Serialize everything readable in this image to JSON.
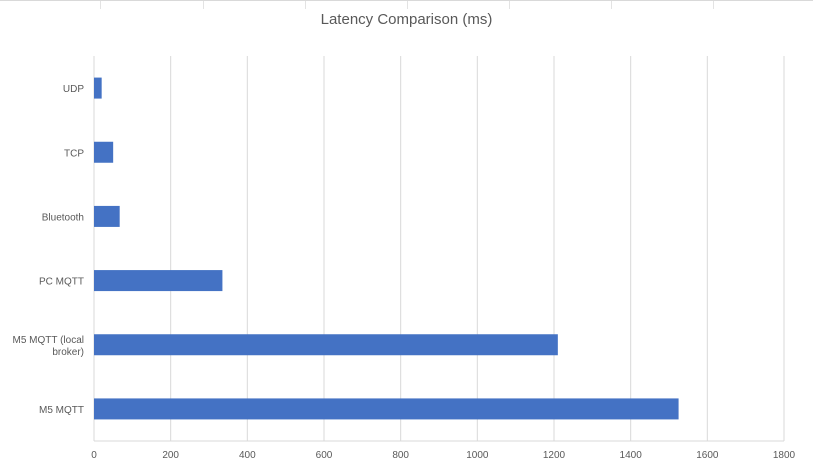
{
  "chart_data": {
    "type": "bar",
    "orientation": "horizontal",
    "title": "Latency Comparison (ms)",
    "categories": [
      "UDP",
      "TCP",
      "Bluetooth",
      "PC MQTT",
      "M5 MQTT (local broker)",
      "M5 MQTT"
    ],
    "values": [
      20,
      50,
      67,
      335,
      1210,
      1525
    ],
    "xlabel": "",
    "ylabel": "",
    "xlim": [
      0,
      1800
    ],
    "xticks": [
      0,
      200,
      400,
      600,
      800,
      1000,
      1200,
      1400,
      1600,
      1800
    ],
    "grid": true,
    "legend": "none",
    "bar_color": "#4472c4",
    "grid_color": "#d9d9d9"
  }
}
